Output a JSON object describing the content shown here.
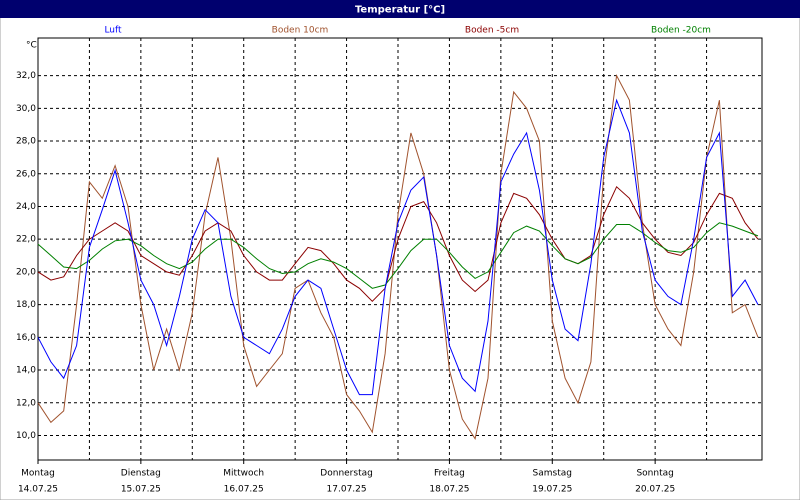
{
  "chart_data": {
    "type": "line",
    "title": "Temperatur [°C]",
    "y_label": "°C",
    "x": [
      0,
      0.125,
      0.25,
      0.375,
      0.5,
      0.625,
      0.75,
      0.875,
      1,
      1.125,
      1.25,
      1.375,
      1.5,
      1.625,
      1.75,
      1.875,
      2,
      2.125,
      2.25,
      2.375,
      2.5,
      2.625,
      2.75,
      2.875,
      3,
      3.125,
      3.25,
      3.375,
      3.5,
      3.625,
      3.75,
      3.875,
      4,
      4.125,
      4.25,
      4.375,
      4.5,
      4.625,
      4.75,
      4.875,
      5,
      5.125,
      5.25,
      5.375,
      5.5,
      5.625,
      5.75,
      5.875,
      6,
      6.125,
      6.25,
      6.375,
      6.5,
      6.625,
      6.75,
      6.875,
      7
    ],
    "series": [
      {
        "name": "Luft",
        "color": "#0000ff",
        "values": [
          16.0,
          14.5,
          13.5,
          15.5,
          21.5,
          23.8,
          26.2,
          23.0,
          19.5,
          18.0,
          15.5,
          18.5,
          22.0,
          23.8,
          23.0,
          18.5,
          16.0,
          15.5,
          15.0,
          16.5,
          18.5,
          19.5,
          19.0,
          16.5,
          14.0,
          12.5,
          12.5,
          19.0,
          23.0,
          25.0,
          25.8,
          21.0,
          15.5,
          13.5,
          12.7,
          17.0,
          25.5,
          27.2,
          28.5,
          25.0,
          19.5,
          16.5,
          15.8,
          20.5,
          27.0,
          30.5,
          28.5,
          22.5,
          19.5,
          18.5,
          18.0,
          22.0,
          27.0,
          28.5,
          18.5,
          19.5,
          18.0
        ]
      },
      {
        "name": "Boden 10cm",
        "color": "#a0522d",
        "values": [
          12.0,
          10.8,
          11.5,
          18.0,
          25.5,
          24.5,
          26.5,
          24.0,
          18.0,
          14.0,
          16.5,
          14.0,
          17.5,
          23.5,
          27.0,
          22.0,
          15.5,
          13.0,
          14.0,
          15.0,
          19.0,
          19.5,
          17.5,
          16.0,
          12.5,
          11.5,
          10.2,
          15.0,
          23.5,
          28.5,
          26.0,
          21.0,
          14.0,
          11.0,
          9.8,
          13.5,
          26.0,
          31.0,
          30.0,
          28.0,
          17.0,
          13.5,
          12.0,
          14.5,
          26.0,
          32.0,
          30.5,
          23.0,
          18.0,
          16.5,
          15.5,
          20.0,
          27.0,
          30.5,
          17.5,
          18.0,
          16.0
        ]
      },
      {
        "name": "Boden -5cm",
        "color": "#8b0000",
        "values": [
          20.0,
          19.5,
          19.7,
          21.0,
          22.0,
          22.5,
          23.0,
          22.5,
          21.0,
          20.5,
          20.0,
          19.8,
          21.0,
          22.5,
          23.0,
          22.5,
          21.0,
          20.0,
          19.5,
          19.5,
          20.5,
          21.5,
          21.3,
          20.5,
          19.5,
          19.0,
          18.2,
          19.0,
          22.0,
          24.0,
          24.3,
          23.0,
          21.0,
          19.5,
          18.8,
          19.5,
          23.0,
          24.8,
          24.5,
          23.5,
          22.0,
          20.8,
          20.5,
          21.0,
          23.5,
          25.2,
          24.5,
          23.0,
          22.0,
          21.2,
          21.0,
          21.8,
          23.5,
          24.8,
          24.5,
          23.0,
          22.0
        ]
      },
      {
        "name": "Boden -20cm",
        "color": "#008000",
        "values": [
          21.7,
          21.0,
          20.3,
          20.2,
          20.7,
          21.4,
          21.9,
          22.0,
          21.6,
          21.0,
          20.5,
          20.2,
          20.6,
          21.4,
          22.0,
          22.0,
          21.5,
          20.8,
          20.2,
          19.9,
          20.0,
          20.5,
          20.8,
          20.6,
          20.2,
          19.6,
          19.0,
          19.2,
          20.2,
          21.3,
          22.0,
          22.0,
          21.2,
          20.3,
          19.6,
          20.0,
          21.2,
          22.4,
          22.8,
          22.5,
          21.6,
          20.8,
          20.5,
          20.9,
          22.0,
          22.9,
          22.9,
          22.4,
          21.8,
          21.3,
          21.2,
          21.5,
          22.4,
          23.0,
          22.8,
          22.5,
          22.2
        ]
      }
    ],
    "xlim": [
      0,
      7
    ],
    "xticks": [
      {
        "value": 0,
        "label": "Montag"
      },
      {
        "value": 1,
        "label": "Dienstag"
      },
      {
        "value": 2,
        "label": "Mittwoch"
      },
      {
        "value": 3,
        "label": "Donnerstag"
      },
      {
        "value": 4,
        "label": "Freitag"
      },
      {
        "value": 5,
        "label": "Samstag"
      },
      {
        "value": 6,
        "label": "Sonntag"
      }
    ],
    "xtick_dates": [
      "14.07.25",
      "15.07.25",
      "16.07.25",
      "17.07.25",
      "18.07.25",
      "19.07.25",
      "20.07.25"
    ],
    "xgrid": [
      0.5,
      1,
      1.5,
      2,
      2.5,
      3,
      3.5,
      4,
      4.5,
      5,
      5.5,
      6,
      6.5
    ],
    "ylim": [
      8.5,
      34.3
    ],
    "yticks": [
      {
        "value": 10,
        "label": "10,0"
      },
      {
        "value": 12,
        "label": "12,0"
      },
      {
        "value": 14,
        "label": "14,0"
      },
      {
        "value": 16,
        "label": "16,0"
      },
      {
        "value": 18,
        "label": "18,0"
      },
      {
        "value": 20,
        "label": "20,0"
      },
      {
        "value": 22,
        "label": "22,0"
      },
      {
        "value": 24,
        "label": "24,0"
      },
      {
        "value": 26,
        "label": "26,0"
      },
      {
        "value": 28,
        "label": "28,0"
      },
      {
        "value": 30,
        "label": "30,0"
      },
      {
        "value": 32,
        "label": "32,0"
      }
    ],
    "grid": true
  }
}
